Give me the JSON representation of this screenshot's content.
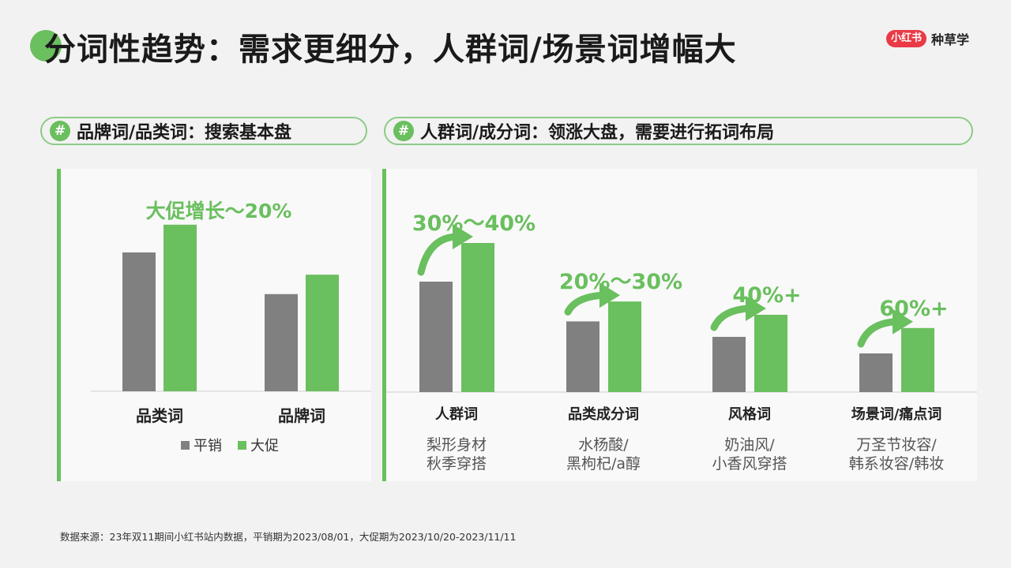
{
  "header": {
    "title": "分词性趋势：需求更细分，人群词/场景词增幅大",
    "brand_logo": "小红书",
    "brand_slogan": "种草学"
  },
  "pills": {
    "left": "品牌词/品类词：搜索基本盘",
    "right": "人群词/成分词：领涨大盘，需要进行拓词布局",
    "hash_icon": "#"
  },
  "colors": {
    "regular": "#808080",
    "promo": "#6abf5e",
    "accent": "#6abf5e"
  },
  "chart_data": [
    {
      "type": "bar",
      "categories": [
        "品类词",
        "品牌词"
      ],
      "series": [
        {
          "name": "平销",
          "values": [
            100,
            70
          ]
        },
        {
          "name": "大促",
          "values": [
            120,
            84
          ]
        }
      ],
      "ylim": [
        0,
        130
      ],
      "annotation": "大促增长～20%",
      "legend": "bottom"
    },
    {
      "type": "bar",
      "categories": [
        "人群词",
        "品类成分词",
        "风格词",
        "场景词/痛点词"
      ],
      "category_examples": [
        [
          "梨形身材",
          "秋季穿搭"
        ],
        [
          "水杨酸/",
          "黑枸杞/a醇"
        ],
        [
          "奶油风/",
          "小香风穿搭"
        ],
        [
          "万圣节妆容/",
          "韩系妆容/韩妆"
        ]
      ],
      "series": [
        {
          "name": "平销",
          "values": [
            100,
            64,
            50,
            35
          ]
        },
        {
          "name": "大促",
          "values": [
            135,
            82,
            70,
            58
          ]
        }
      ],
      "growth_labels": [
        "30%～40%",
        "20%～30%",
        "40%+",
        "60%+"
      ],
      "ylim": [
        0,
        160
      ]
    }
  ],
  "footer": {
    "source": "数据来源：23年双11期间小红书站内数据，平销期为2023/08/01，大促期为2023/10/20-2023/11/11"
  }
}
